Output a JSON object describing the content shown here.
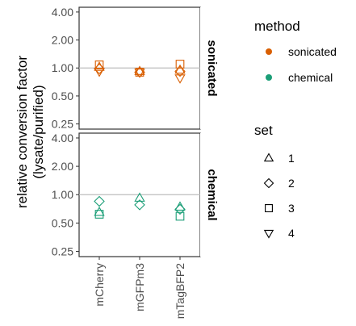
{
  "chart_data": {
    "type": "scatter",
    "ylabel_lines": [
      "relative conversion factor",
      "(lysate/purified)"
    ],
    "y_scale": "log",
    "y_ticks": [
      "4.00",
      "2.00",
      "1.00",
      "0.50",
      "0.25"
    ],
    "y_tick_values": [
      4,
      2,
      1,
      0.5,
      0.25
    ],
    "ylim": [
      0.22,
      4.5
    ],
    "reference_line": 1,
    "categories": [
      "mCherry",
      "mGFPm3",
      "mTagBFP2"
    ],
    "facets": [
      "sonicated",
      "chemical"
    ],
    "colors": {
      "sonicated": "#d95f02",
      "chemical": "#1b9e77",
      "refline": "#bdbdbd"
    },
    "points": [
      {
        "facet": "sonicated",
        "category": "mCherry",
        "set": "1",
        "y": 1.02
      },
      {
        "facet": "sonicated",
        "category": "mCherry",
        "set": "2",
        "y": 0.98
      },
      {
        "facet": "sonicated",
        "category": "mCherry",
        "set": "3",
        "y": 1.08
      },
      {
        "facet": "sonicated",
        "category": "mCherry",
        "set": "4",
        "y": 0.92
      },
      {
        "facet": "sonicated",
        "category": "mGFPm3",
        "set": "1",
        "y": 0.92
      },
      {
        "facet": "sonicated",
        "category": "mGFPm3",
        "set": "2",
        "y": 0.9
      },
      {
        "facet": "sonicated",
        "category": "mGFPm3",
        "set": "3",
        "y": 0.9
      },
      {
        "facet": "sonicated",
        "category": "mGFPm3",
        "set": "4",
        "y": 0.9
      },
      {
        "facet": "sonicated",
        "category": "mTagBFP2",
        "set": "1",
        "y": 0.95
      },
      {
        "facet": "sonicated",
        "category": "mTagBFP2",
        "set": "2",
        "y": 0.92
      },
      {
        "facet": "sonicated",
        "category": "mTagBFP2",
        "set": "3",
        "y": 1.1
      },
      {
        "facet": "sonicated",
        "category": "mTagBFP2",
        "set": "4",
        "y": 0.78
      },
      {
        "facet": "chemical",
        "category": "mCherry",
        "set": "1",
        "y": 0.65
      },
      {
        "facet": "chemical",
        "category": "mCherry",
        "set": "2",
        "y": 0.85
      },
      {
        "facet": "chemical",
        "category": "mCherry",
        "set": "3",
        "y": 0.62
      },
      {
        "facet": "chemical",
        "category": "mGFPm3",
        "set": "1",
        "y": 0.92
      },
      {
        "facet": "chemical",
        "category": "mGFPm3",
        "set": "2",
        "y": 0.78
      },
      {
        "facet": "chemical",
        "category": "mTagBFP2",
        "set": "1",
        "y": 0.74
      },
      {
        "facet": "chemical",
        "category": "mTagBFP2",
        "set": "2",
        "y": 0.7
      },
      {
        "facet": "chemical",
        "category": "mTagBFP2",
        "set": "3",
        "y": 0.59
      }
    ],
    "legend": {
      "placement": "right",
      "color_title": "method",
      "color_items": [
        "sonicated",
        "chemical"
      ],
      "shape_title": "set",
      "shape_items": [
        {
          "label": "1",
          "shape": "triangle-up"
        },
        {
          "label": "2",
          "shape": "diamond"
        },
        {
          "label": "3",
          "shape": "square"
        },
        {
          "label": "4",
          "shape": "triangle-down"
        }
      ]
    }
  }
}
